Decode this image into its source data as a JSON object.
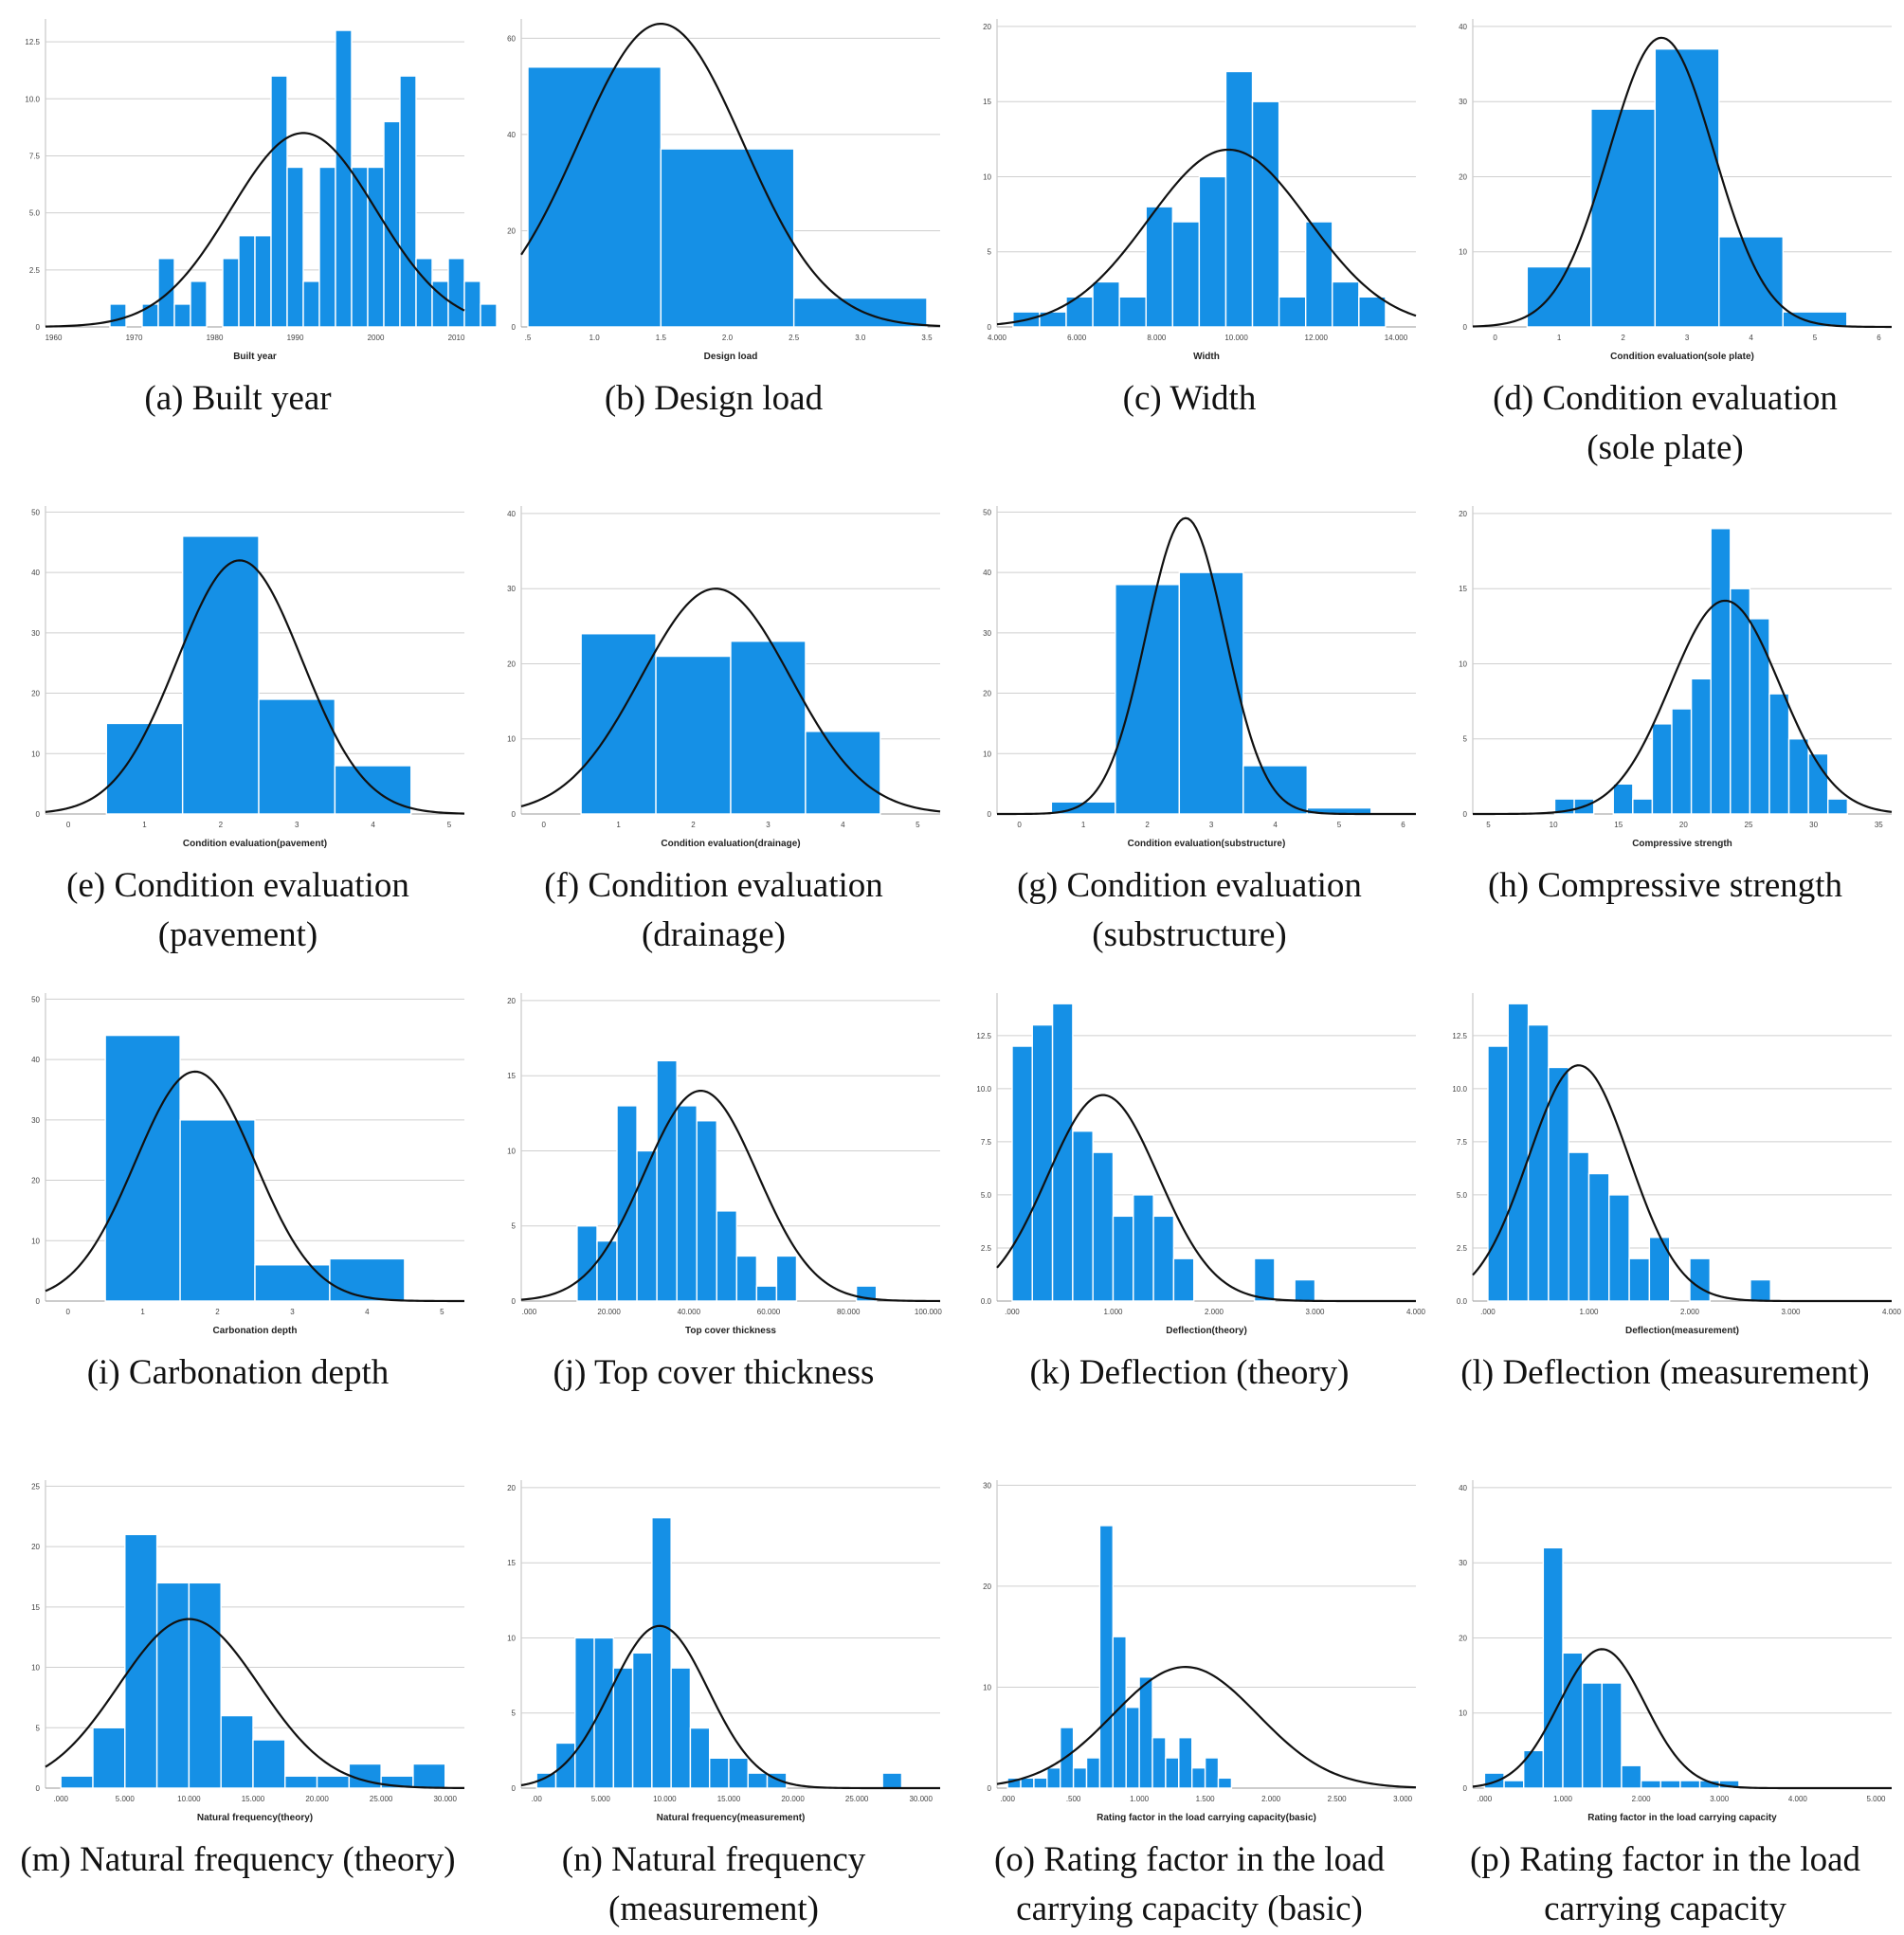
{
  "chart_data": [
    {
      "id": "a",
      "type": "bar",
      "caption": "(a) Built year",
      "xlabel": "Built year",
      "x_ticks": [
        "1960",
        "1970",
        "1980",
        "1990",
        "2000",
        "2010"
      ],
      "xlim": [
        1959,
        2011
      ],
      "y_ticks": [
        "0",
        "2.5",
        "5.0",
        "7.5",
        "10.0",
        "12.5"
      ],
      "ylim": [
        0,
        13.5
      ],
      "bin_start": 1967,
      "bin_width": 2,
      "values": [
        1,
        0,
        1,
        3,
        1,
        2,
        0,
        3,
        4,
        4,
        11,
        7,
        2,
        7,
        13,
        7,
        7,
        9,
        11,
        3,
        2,
        3,
        2,
        1
      ],
      "normal": {
        "mean": 1991,
        "sd": 9,
        "peak": 8.5
      }
    },
    {
      "id": "b",
      "type": "bar",
      "caption": "(b) Design load",
      "xlabel": "Design load",
      "x_ticks": [
        ".5",
        "1.0",
        "1.5",
        "2.0",
        "2.5",
        "3.0",
        "3.5"
      ],
      "xlim": [
        0.45,
        3.6
      ],
      "y_ticks": [
        "0",
        "20",
        "40",
        "60"
      ],
      "ylim": [
        0,
        64
      ],
      "bin_start": 0.5,
      "bin_width": 1,
      "values": [
        54,
        37,
        6
      ],
      "normal": {
        "mean": 1.5,
        "sd": 0.62,
        "peak": 63
      }
    },
    {
      "id": "c",
      "type": "bar",
      "caption": "(c) Width",
      "xlabel": "Width",
      "x_ticks": [
        "4.000",
        "6.000",
        "8.000",
        "10.000",
        "12.000",
        "14.000"
      ],
      "xlim": [
        4,
        14.5
      ],
      "y_ticks": [
        "0",
        "5",
        "10",
        "15",
        "20"
      ],
      "ylim": [
        0,
        20.5
      ],
      "bin_start": 4.4,
      "bin_width": 0.667,
      "values": [
        1,
        1,
        2,
        3,
        2,
        8,
        7,
        10,
        17,
        15,
        2,
        7,
        3,
        2
      ],
      "normal": {
        "mean": 9.8,
        "sd": 2,
        "peak": 11.8
      }
    },
    {
      "id": "d",
      "type": "bar",
      "caption": "(d) Condition evaluation\n(sole plate)",
      "xlabel": "Condition evaluation(sole plate)",
      "x_ticks": [
        "0",
        "1",
        "2",
        "3",
        "4",
        "5",
        "6"
      ],
      "xlim": [
        -0.35,
        6.2
      ],
      "y_ticks": [
        "0",
        "10",
        "20",
        "30",
        "40"
      ],
      "ylim": [
        0,
        41
      ],
      "bin_start": 0.5,
      "bin_width": 1,
      "values": [
        8,
        29,
        37,
        12,
        2
      ],
      "normal": {
        "mean": 2.6,
        "sd": 0.82,
        "peak": 38.5
      }
    },
    {
      "id": "e",
      "type": "bar",
      "caption": "(e) Condition evaluation\n(pavement)",
      "xlabel": "Condition evaluation(pavement)",
      "x_ticks": [
        "0",
        "1",
        "2",
        "3",
        "4",
        "5"
      ],
      "xlim": [
        -0.3,
        5.2
      ],
      "y_ticks": [
        "0",
        "10",
        "20",
        "30",
        "40",
        "50"
      ],
      "ylim": [
        0,
        51
      ],
      "bin_start": 0.5,
      "bin_width": 1,
      "values": [
        15,
        46,
        19,
        8
      ],
      "normal": {
        "mean": 2.25,
        "sd": 0.82,
        "peak": 42
      }
    },
    {
      "id": "f",
      "type": "bar",
      "caption": "(f) Condition evaluation\n(drainage)",
      "xlabel": "Condition evaluation(drainage)",
      "x_ticks": [
        "0",
        "1",
        "2",
        "3",
        "4",
        "5"
      ],
      "xlim": [
        -0.3,
        5.3
      ],
      "y_ticks": [
        "0",
        "10",
        "20",
        "30",
        "40"
      ],
      "ylim": [
        0,
        41
      ],
      "bin_start": 0.5,
      "bin_width": 1,
      "values": [
        24,
        21,
        23,
        11
      ],
      "normal": {
        "mean": 2.3,
        "sd": 1,
        "peak": 30
      }
    },
    {
      "id": "g",
      "type": "bar",
      "caption": "(g) Condition evaluation\n(substructure)",
      "xlabel": "Condition evaluation(substructure)",
      "x_ticks": [
        "0",
        "1",
        "2",
        "3",
        "4",
        "5",
        "6"
      ],
      "xlim": [
        -0.35,
        6.2
      ],
      "y_ticks": [
        "0",
        "10",
        "20",
        "30",
        "40",
        "50"
      ],
      "ylim": [
        0,
        51
      ],
      "bin_start": 0.5,
      "bin_width": 1,
      "values": [
        2,
        38,
        40,
        8,
        1
      ],
      "normal": {
        "mean": 2.6,
        "sd": 0.62,
        "peak": 49
      }
    },
    {
      "id": "h",
      "type": "bar",
      "caption": "(h) Compressive strength",
      "xlabel": "Compressive strength",
      "x_ticks": [
        "5",
        "10",
        "15",
        "20",
        "25",
        "30",
        "35"
      ],
      "xlim": [
        3.8,
        36
      ],
      "y_ticks": [
        "0",
        "5",
        "10",
        "15",
        "20"
      ],
      "ylim": [
        0,
        20.5
      ],
      "bin_start": 10.1,
      "bin_width": 1.5,
      "values": [
        1,
        1,
        0,
        2,
        1,
        6,
        7,
        9,
        19,
        15,
        13,
        8,
        5,
        4,
        1
      ],
      "normal": {
        "mean": 23.2,
        "sd": 4.2,
        "peak": 14.2
      }
    },
    {
      "id": "i",
      "type": "bar",
      "caption": "(i) Carbonation depth",
      "xlabel": "Carbonation depth",
      "x_ticks": [
        "0",
        "1",
        "2",
        "3",
        "4",
        "5"
      ],
      "xlim": [
        -0.3,
        5.3
      ],
      "y_ticks": [
        "0",
        "10",
        "20",
        "30",
        "40",
        "50"
      ],
      "ylim": [
        0,
        51
      ],
      "bin_start": 0.5,
      "bin_width": 1,
      "values": [
        44,
        30,
        6,
        7
      ],
      "normal": {
        "mean": 1.7,
        "sd": 0.8,
        "peak": 38
      }
    },
    {
      "id": "j",
      "type": "bar",
      "caption": "(j) Top cover thickness",
      "xlabel": "Top cover thickness",
      "x_ticks": [
        ".000",
        "20.000",
        "40.000",
        "60.000",
        "80.000",
        "100.000"
      ],
      "xlim": [
        -2,
        103
      ],
      "y_ticks": [
        "0",
        "5",
        "10",
        "15",
        "20"
      ],
      "ylim": [
        0,
        20.5
      ],
      "bin_start": 12,
      "bin_width": 5,
      "values": [
        5,
        4,
        13,
        10,
        16,
        13,
        12,
        6,
        3,
        1,
        3,
        0,
        0,
        0,
        1
      ],
      "normal": {
        "mean": 43,
        "sd": 14.2,
        "peak": 14
      }
    },
    {
      "id": "k",
      "type": "bar",
      "caption": "(k) Deflection (theory)",
      "xlabel": "Deflection(theory)",
      "x_ticks": [
        ".000",
        "1.000",
        "2.000",
        "3.000",
        "4.000"
      ],
      "xlim": [
        -0.15,
        4
      ],
      "y_ticks": [
        "0.0",
        "2.5",
        "5.0",
        "7.5",
        "10.0",
        "12.5"
      ],
      "ylim": [
        0,
        14.5
      ],
      "bin_start": 0,
      "bin_width": 0.2,
      "values": [
        12,
        13,
        14,
        8,
        7,
        4,
        5,
        4,
        2,
        0,
        0,
        0,
        2,
        0,
        1
      ],
      "normal": {
        "mean": 0.9,
        "sd": 0.55,
        "peak": 9.7
      }
    },
    {
      "id": "l",
      "type": "bar",
      "caption": "(l) Deflection (measurement)",
      "xlabel": "Deflection(measurement)",
      "x_ticks": [
        ".000",
        "1.000",
        "2.000",
        "3.000",
        "4.000"
      ],
      "xlim": [
        -0.15,
        4
      ],
      "y_ticks": [
        "0.0",
        "2.5",
        "5.0",
        "7.5",
        "10.0",
        "12.5"
      ],
      "ylim": [
        0,
        14.5
      ],
      "bin_start": 0,
      "bin_width": 0.2,
      "values": [
        12,
        14,
        13,
        11,
        7,
        6,
        5,
        2,
        3,
        0,
        2,
        0,
        0,
        1
      ],
      "normal": {
        "mean": 0.9,
        "sd": 0.5,
        "peak": 11.1
      }
    },
    {
      "id": "m",
      "type": "bar",
      "caption": "(m) Natural frequency (theory)",
      "xlabel": "Natural frequency(theory)",
      "x_ticks": [
        ".000",
        "5.000",
        "10.000",
        "15.000",
        "20.000",
        "25.000",
        "30.000"
      ],
      "xlim": [
        -1.2,
        31.5
      ],
      "y_ticks": [
        "0",
        "5",
        "10",
        "15",
        "20",
        "25"
      ],
      "ylim": [
        0,
        25.5
      ],
      "bin_start": 0,
      "bin_width": 2.5,
      "values": [
        1,
        5,
        21,
        17,
        17,
        6,
        4,
        1,
        1,
        2,
        1,
        2
      ],
      "normal": {
        "mean": 10,
        "sd": 5.5,
        "peak": 14
      }
    },
    {
      "id": "n",
      "type": "bar",
      "caption": "(n) Natural frequency\n(measurement)",
      "xlabel": "Natural frequency(measurement)",
      "x_ticks": [
        ".00",
        "5.000",
        "10.000",
        "15.000",
        "20.000",
        "25.000",
        "30.000"
      ],
      "xlim": [
        -1.2,
        31.5
      ],
      "y_ticks": [
        "0",
        "5",
        "10",
        "15",
        "20"
      ],
      "ylim": [
        0,
        20.5
      ],
      "bin_start": 0,
      "bin_width": 1.5,
      "values": [
        1,
        3,
        10,
        10,
        8,
        9,
        18,
        8,
        4,
        2,
        2,
        1,
        1,
        0,
        0,
        0,
        0,
        0,
        1
      ],
      "normal": {
        "mean": 9.6,
        "sd": 3.8,
        "peak": 10.8
      }
    },
    {
      "id": "o",
      "type": "bar",
      "caption": "(o) Rating factor in the load\ncarrying capacity (basic)",
      "xlabel": "Rating factor in the load carrying capacity(basic)",
      "x_ticks": [
        ".000",
        ".500",
        "1.000",
        "1.500",
        "2.000",
        "2.500",
        "3.000"
      ],
      "xlim": [
        -0.08,
        3.1
      ],
      "y_ticks": [
        "0",
        "10",
        "20",
        "30"
      ],
      "ylim": [
        0,
        30.5
      ],
      "bin_start": 0,
      "bin_width": 0.1,
      "values": [
        1,
        1,
        1,
        2,
        6,
        2,
        3,
        26,
        15,
        8,
        11,
        5,
        3,
        5,
        2,
        3,
        1
      ],
      "normal": {
        "mean": 1.35,
        "sd": 0.55,
        "peak": 12
      }
    },
    {
      "id": "p",
      "type": "bar",
      "caption": "(p) Rating factor in the load\ncarrying capacity",
      "xlabel": "Rating factor in the load carrying capacity",
      "x_ticks": [
        ".000",
        "1.000",
        "2.000",
        "3.000",
        "4.000",
        "5.000"
      ],
      "xlim": [
        -0.15,
        5.2
      ],
      "y_ticks": [
        "0",
        "10",
        "20",
        "30",
        "40"
      ],
      "ylim": [
        0,
        41
      ],
      "bin_start": 0,
      "bin_width": 0.25,
      "values": [
        2,
        1,
        5,
        32,
        18,
        14,
        14,
        3,
        1,
        1,
        1,
        1,
        1
      ],
      "normal": {
        "mean": 1.5,
        "sd": 0.55,
        "peak": 18.5
      }
    }
  ]
}
